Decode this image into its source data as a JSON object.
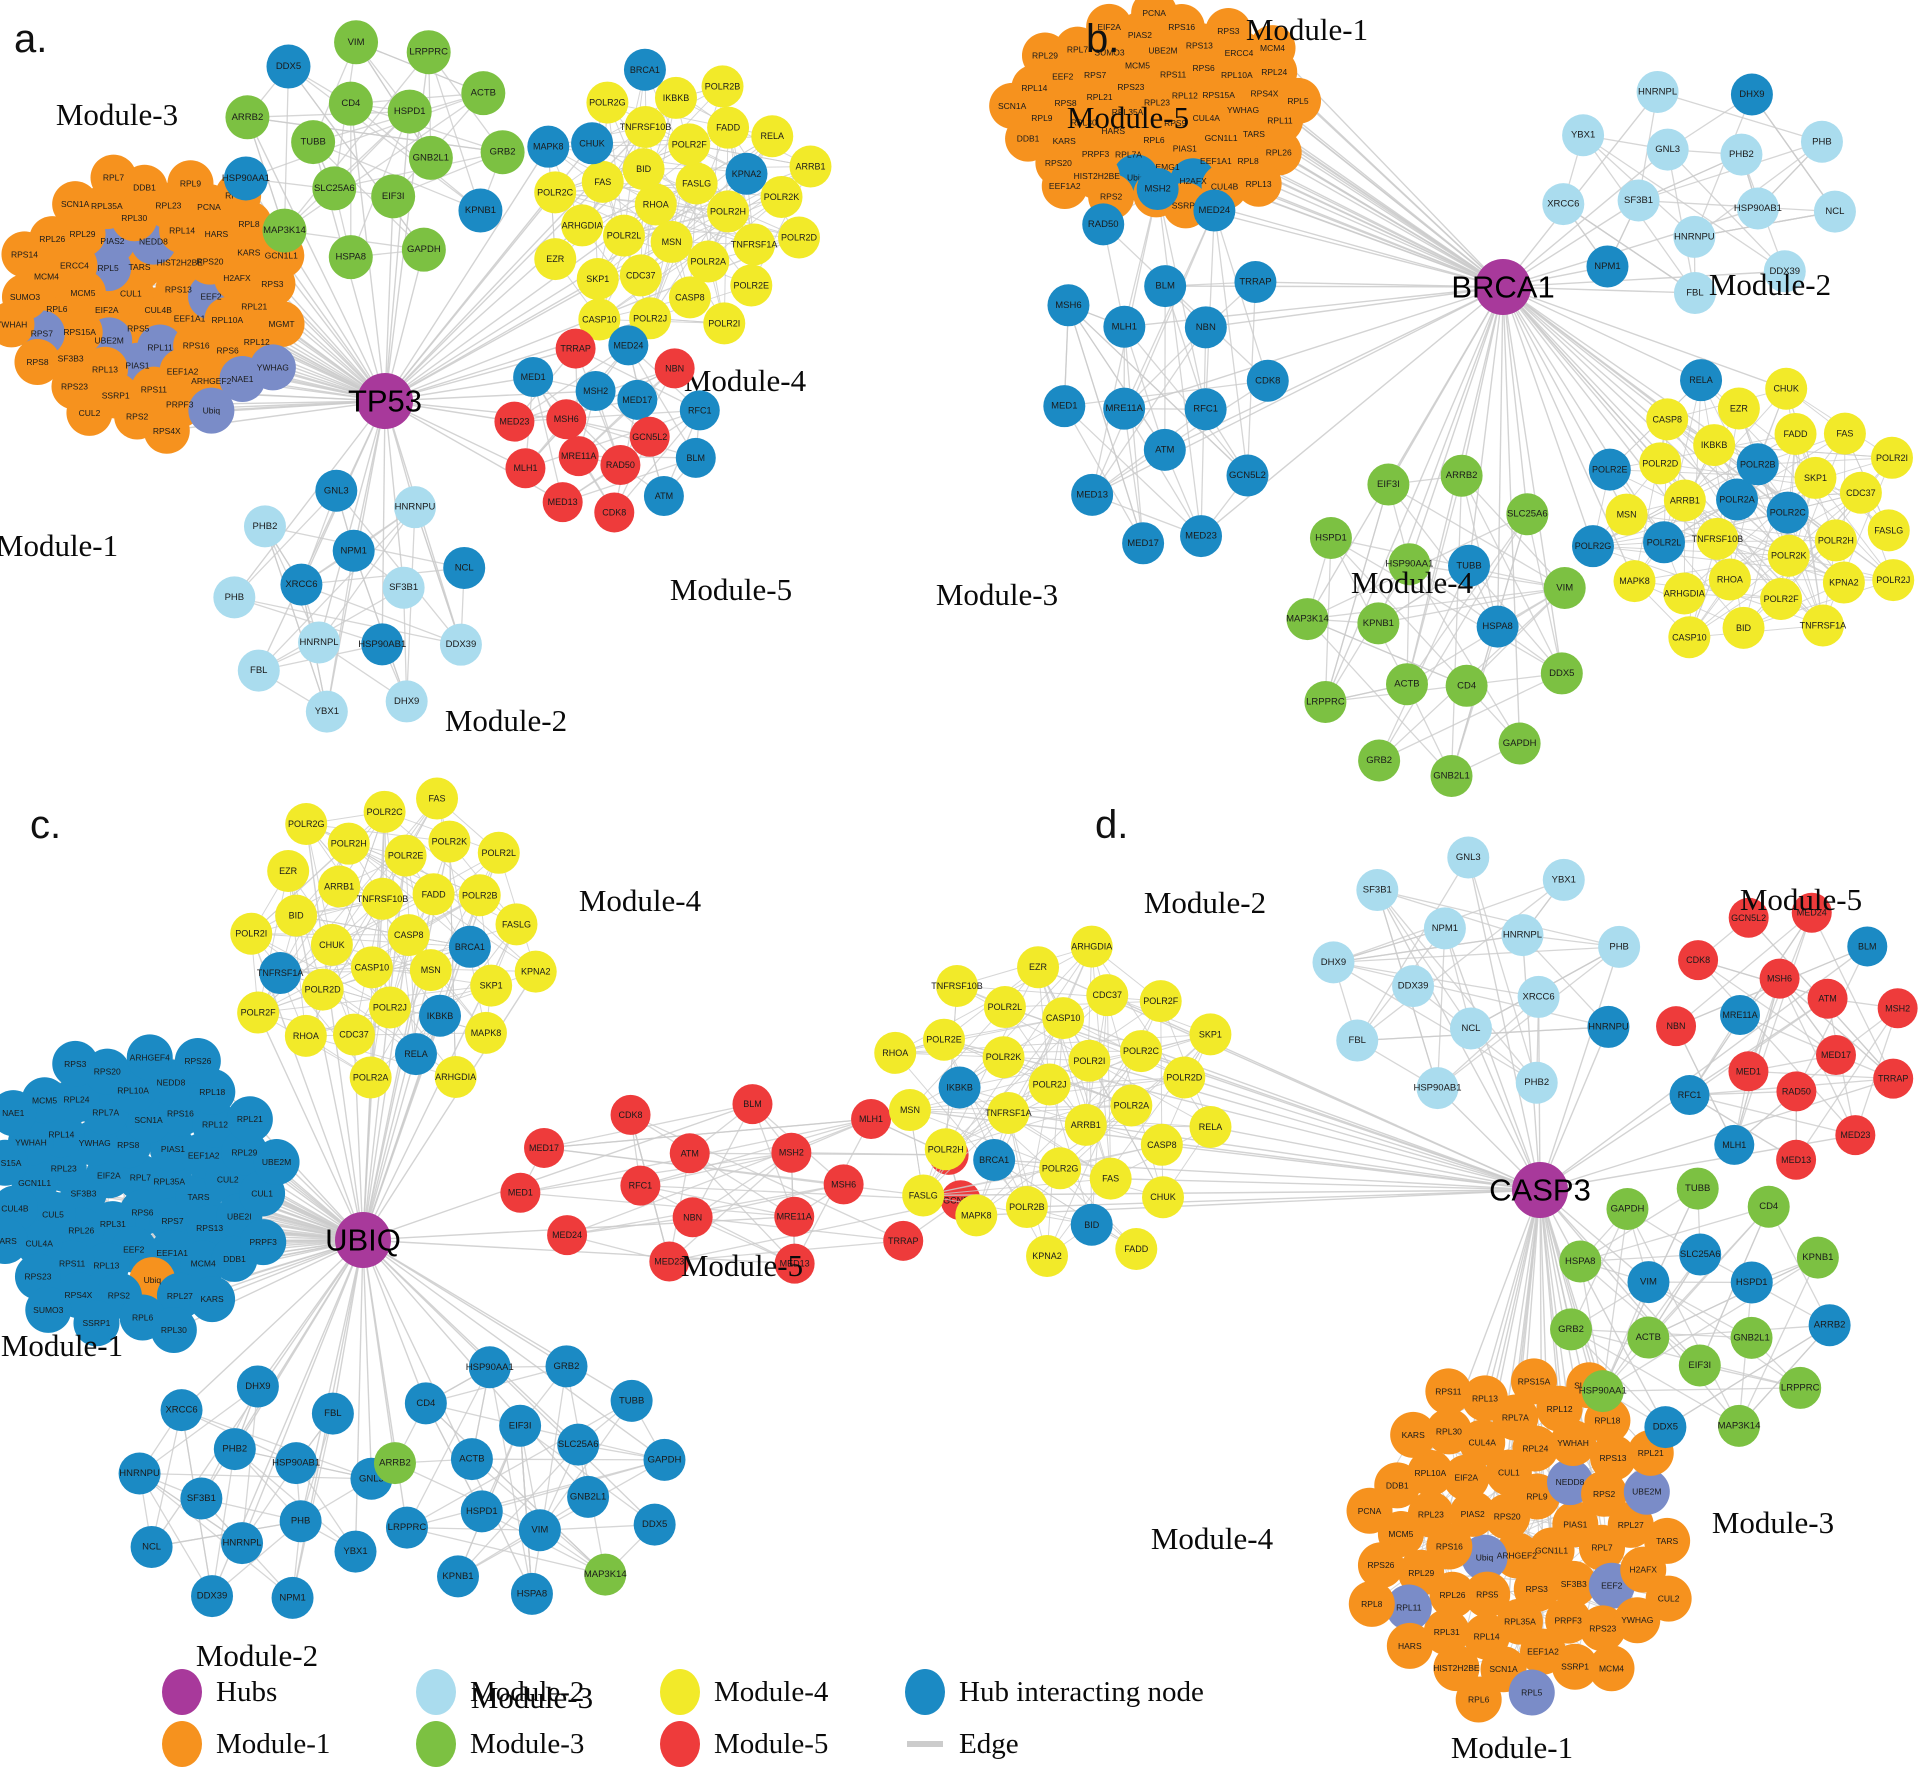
{
  "palette": {
    "hub": "#a8399b",
    "module1": "#f6921e",
    "module2": "#aadcee",
    "module3": "#7cc142",
    "module4": "#f2ea29",
    "module5": "#ee3b3b",
    "interacting": "#1b8ac4",
    "slate": "#7a8cc8",
    "edge": "#cccccc"
  },
  "legend": {
    "items": [
      {
        "label": "Hubs",
        "color": "hub",
        "shape": "dot"
      },
      {
        "label": "Module-1",
        "color": "module1",
        "shape": "dot"
      },
      {
        "label": "Module-2",
        "color": "module2",
        "shape": "dot"
      },
      {
        "label": "Module-3",
        "color": "module3",
        "shape": "dot"
      },
      {
        "label": "Module-4",
        "color": "module4",
        "shape": "dot"
      },
      {
        "label": "Module-5",
        "color": "module5",
        "shape": "dot"
      },
      {
        "label": "Hub interacting node",
        "color": "interacting",
        "shape": "dot"
      },
      {
        "label": "Edge",
        "color": "edge",
        "shape": "line"
      }
    ]
  },
  "panels": [
    {
      "letter": "a.",
      "hub": "TP53",
      "modules": [
        {
          "name": "Module-1",
          "color": "module1",
          "nodes": [
            "CUL4B",
            "CUL1",
            "RPS13",
            "RPS5",
            "TARS",
            "EEF1A1",
            "EIF2A",
            "HIST2H2BE",
            "RPL11|s",
            "RPL5|s",
            "EEF2|s",
            "UBE2M|s",
            "NEDD8|s",
            "RPS16",
            "MCM5",
            "RPS20",
            "PIAS1|s",
            "PIAS2|s",
            "RPL10A",
            "RPS15A",
            "RPL14",
            "EEF1A2",
            "ERCC4",
            "H2AFX",
            "RPL13",
            "RPL30",
            "RPS6",
            "RPL6",
            "HARS",
            "RPS11",
            "RPL29",
            "RPL21",
            "SF3B3",
            "RPL23",
            "ARHGEF2",
            "MCM4",
            "KARS",
            "SSRP1",
            "RPL35A",
            "RPL12",
            "RPS7|s",
            "PCNA",
            "PRPF3",
            "RPL26",
            "RPS3",
            "RPS23",
            "DDB1",
            "NAE1|s",
            "SUMO3",
            "RPL8",
            "RPS2",
            "SCN1A",
            "MGMT",
            "RPS8",
            "RPL9",
            "Ubiq|s",
            "RPS14",
            "GCN1L1",
            "CUL2",
            "RPL7",
            "YWHAG|s",
            "YWHAH",
            "RPL24",
            "RPS4X"
          ]
        },
        {
          "name": "Module-2",
          "color": "module2",
          "nodes": [
            "HNRNPL",
            "XRCC6|i",
            "NPM1|i",
            "SF3B1",
            "HSP90AB1|i",
            "PHB",
            "PHB2",
            "GNL3|i",
            "HNRNPU",
            "NCL|i",
            "DDX39",
            "DHX9",
            "YBX1",
            "FBL"
          ]
        },
        {
          "name": "Module-3",
          "color": "module3",
          "nodes": [
            "CD4",
            "HSPD1",
            "GNB2L1",
            "EIF3I",
            "SLC25A6",
            "TUBB",
            "DDX5|i",
            "VIM",
            "LRPPRC",
            "ACTB",
            "GRB2",
            "KPNB1|i",
            "GAPDH",
            "HSPA8",
            "MAP3K14",
            "HSP90AA1|i",
            "ARRB2"
          ]
        },
        {
          "name": "Module-4",
          "color": "module4",
          "nodes": [
            "RHOA",
            "FASLG",
            "MSN",
            "BID",
            "POLR2H",
            "POLR2L",
            "POLR2F",
            "POLR2A",
            "FAS",
            "KPNA2|i",
            "CDC37",
            "TNFRSF10B",
            "TNFRSF1A",
            "ARHGDIA",
            "FADD",
            "CASP8",
            "CHUK|i",
            "POLR2K",
            "SKP1",
            "IKBKB",
            "POLR2E",
            "POLR2C",
            "RELA",
            "POLR2J",
            "POLR2G",
            "POLR2D",
            "EZR",
            "POLR2B",
            "POLR2I",
            "MAPK8|i",
            "ARRB1",
            "CASP10",
            "BRCA1|i"
          ]
        },
        {
          "name": "Module-5",
          "color": "module5",
          "nodes": [
            "RAD50",
            "MRE11A",
            "MSH6",
            "MSH2|i",
            "MED17|i",
            "GCN5L2",
            "MED1|i",
            "TRRAP",
            "MED24|i",
            "NBN",
            "RFC1|i",
            "BLM|i",
            "ATM|i",
            "CDK8",
            "MED13",
            "MLH1",
            "MED23"
          ]
        }
      ]
    },
    {
      "letter": "b.",
      "hub": "BRCA1",
      "modules": [
        {
          "name": "Module-1",
          "color": "module1",
          "nodes": [
            "RPL23",
            "RPS9",
            "RPL35A",
            "RPL12",
            "RPL6",
            "RPS23",
            "CUL4A",
            "HARS",
            "RPS11",
            "PIAS1",
            "RPL21",
            "RPS15A",
            "RPL7A",
            "MCM5",
            "GCN1L1",
            "RPL30",
            "RPS6",
            "EMG1",
            "RPS7",
            "YWHAG",
            "PRPF3",
            "UBE2M",
            "EEF1A1",
            "RPS8",
            "RPL10A",
            "Ubiq|i",
            "SUMO3",
            "TARS",
            "KARS",
            "RPS13",
            "H2AFX|i",
            "EEF2",
            "RPS4X",
            "HIST2H2BE",
            "PIAS2",
            "RPL8",
            "RPL9",
            "ERCC4",
            "NAE1",
            "RPL7",
            "RPL11",
            "RPS20",
            "RPS16",
            "CUL4B",
            "RPL14",
            "RPL24",
            "RPS2",
            "EIF2A",
            "RPL26",
            "DDB1",
            "RPS3",
            "SSRP1",
            "RPL29",
            "RPL5",
            "EEF1A2",
            "PCNA",
            "RPL13",
            "SCN1A",
            "MCM4"
          ]
        },
        {
          "name": "Module-2",
          "color": "module2",
          "nodes": [
            "GNL3",
            "PHB2",
            "HSP90AB1",
            "HNRNPU",
            "SF3B1",
            "NPM1|i",
            "XRCC6",
            "YBX1",
            "HNRNPL",
            "DHX9|i",
            "PHB",
            "NCL",
            "DDX39",
            "FBL"
          ]
        },
        {
          "name": "Module-3",
          "color": "module3",
          "nodes": [
            "TUBB|i",
            "HSPA8|i",
            "CD4",
            "ACTB",
            "KPNB1",
            "HSP90AA1",
            "VIM",
            "DDX5",
            "GAPDH",
            "GNB2L1",
            "GRB2",
            "LRPPRC",
            "MAP3K14",
            "HSPD1",
            "EIF3I",
            "ARRB2",
            "SLC25A6"
          ]
        },
        {
          "name": "Module-4",
          "color": "module4",
          "nodes": [
            "POLR2A|i",
            "POLR2C|i",
            "TNFRSF10B",
            "POLR2B|i",
            "POLR2K",
            "ARRB1",
            "SKP1",
            "RHOA",
            "IKBKB",
            "POLR2H",
            "POLR2L|i",
            "FADD",
            "POLR2F",
            "POLR2D",
            "CDC37",
            "ARHGDIA",
            "EZR",
            "KPNA2",
            "MSN",
            "FAS",
            "BID",
            "CASP8",
            "FASLG",
            "MAPK8",
            "CHUK",
            "TNFRSF1A",
            "POLR2E|i",
            "POLR2I",
            "CASP10",
            "RELA|i",
            "POLR2J",
            "POLR2G|i"
          ]
        },
        {
          "name": "Module-5",
          "color": "module5",
          "nodes": [
            "RFC1|i",
            "ATM|i",
            "MRE11A|i",
            "MLH1|i",
            "BLM|i",
            "NBN|i",
            "MSH6|i",
            "RAD50|i",
            "MSH2|i",
            "MED24|i",
            "TRRAP|i",
            "CDK8|i",
            "GCN5L2|i",
            "MED23|i",
            "MED17|i",
            "MED13|i",
            "MED1|i"
          ]
        }
      ]
    },
    {
      "letter": "c.",
      "hub": "UBIQ",
      "modules": [
        {
          "name": "Module-1",
          "color": "interacting",
          "nodes": [
            "RPL7",
            "RPS6",
            "EIF2A",
            "RPL35A",
            "RPL31",
            "RPS8",
            "RPS7",
            "SF3B3",
            "PIAS1",
            "EEF2",
            "YWHAG",
            "TARS",
            "RPL26",
            "SCN1A",
            "EEF1A1",
            "RPL23",
            "EEF1A2",
            "RPL13",
            "RPL7A",
            "RPS13",
            "CUL5",
            "RPS16",
            "Ubiq|o",
            "RPL14",
            "CUL2",
            "RPS11",
            "RPL10A",
            "MCM4",
            "GCN1L1",
            "RPL12",
            "RPS2",
            "RPL24",
            "UBE2I",
            "CUL4A",
            "NEDD8",
            "RPL27",
            "YWHAH",
            "RPL29",
            "RPS4X",
            "RPS20",
            "DDB1",
            "CUL4B",
            "RPL18",
            "RPL6",
            "MCM5",
            "CUL1",
            "RPS23",
            "ARHGEF4",
            "KARS",
            "RPS15A",
            "RPL21",
            "SSRP1",
            "RPS3",
            "PRPF3",
            "HARS",
            "RPS26",
            "RPL30",
            "NAE1",
            "UBE2M",
            "SUMO3"
          ]
        },
        {
          "name": "Module-2",
          "color": "interacting",
          "nodes": [
            "PHB2",
            "HSP90AB1",
            "PHB",
            "HNRNPL",
            "SF3B1",
            "NCL",
            "HNRNPU",
            "XRCC6",
            "DHX9",
            "FBL",
            "GNL3",
            "YBX1",
            "NPM1",
            "DDX39"
          ]
        },
        {
          "name": "Module-3",
          "color": "interacting",
          "nodes": [
            "GNB2L1",
            "VIM",
            "HSPD1",
            "ACTB",
            "EIF3I",
            "SLC25A6",
            "KPNB1",
            "LRPPRC",
            "ARRB2|g",
            "CD4",
            "HSP90AA1",
            "GRB2",
            "TUBB",
            "GAPDH",
            "DDX5",
            "MAP3K14|g",
            "HSPA8"
          ]
        },
        {
          "name": "Module-4",
          "color": "module4",
          "nodes": [
            "CASP8",
            "CASP10",
            "TNFRSF10B",
            "MSN",
            "CHUK",
            "FADD",
            "POLR2J",
            "ARRB1",
            "BRCA1|i",
            "POLR2D",
            "POLR2E",
            "IKBKB|i",
            "BID",
            "POLR2B",
            "CDC37",
            "POLR2H",
            "SKP1",
            "TNFRSF1A|i",
            "POLR2K",
            "RELA|i",
            "EZR",
            "FASLG",
            "RHOA",
            "POLR2C",
            "MAPK8",
            "POLR2I",
            "POLR2L",
            "POLR2A",
            "POLR2G",
            "KPNA2",
            "POLR2F",
            "FAS",
            "ARHGDIA"
          ]
        },
        {
          "name": "Module-5",
          "color": "module5",
          "nodes": [
            "MSH6",
            "MRE11A",
            "NBN",
            "RFC1",
            "ATM",
            "MSH2",
            "BLM",
            "MLH1",
            "RAD50",
            "GCN5L2",
            "TRRAP",
            "MED13",
            "MED23",
            "MED24",
            "MED1",
            "MED17",
            "CDK8"
          ]
        }
      ]
    },
    {
      "letter": "d.",
      "hub": "CASP3",
      "modules": [
        {
          "name": "Module-1",
          "color": "module1",
          "nodes": [
            "ARHGEF2",
            "RPS20",
            "GCN1L1",
            "Ubiq|s",
            "RPL9",
            "RPS3",
            "PIAS2",
            "PIAS1",
            "RPS5",
            "CUL1",
            "SF3B3",
            "RPS16",
            "NEDD8|s",
            "RPL35A",
            "EIF2A",
            "RPL7",
            "RPL26",
            "RPL24",
            "PRPF3",
            "RPL23",
            "RPS2",
            "RPL14",
            "CUL4A",
            "EEF2|s",
            "RPL29",
            "YWHAH",
            "EEF1A2",
            "RPL10A",
            "RPL27",
            "RPL31",
            "RPL7A",
            "RPS23",
            "MCM5",
            "RPS13",
            "SCN1A",
            "RPL30",
            "H2AFX",
            "RPL11|s",
            "RPL12",
            "SSRP1",
            "DDB1",
            "UBE2M|s",
            "HIST2H2BE",
            "RPL13",
            "YWHAG",
            "RPS26",
            "RPL18",
            "RPL5|s",
            "KARS",
            "TARS",
            "HARS",
            "RPS15A",
            "MCM4",
            "PCNA",
            "RPL21",
            "RPL6",
            "RPS11",
            "CUL2",
            "RPL8",
            "SUMO3"
          ]
        },
        {
          "name": "Module-2",
          "color": "module2",
          "nodes": [
            "NCL",
            "DDX39",
            "NPM1",
            "HNRNPL",
            "XRCC6",
            "PHB2",
            "HSP90AB1",
            "FBL",
            "DHX9",
            "SF3B1",
            "GNL3",
            "YBX1",
            "PHB",
            "HNRNPU|i"
          ]
        },
        {
          "name": "Module-3",
          "color": "module3",
          "nodes": [
            "VIM|i",
            "SLC25A6|i",
            "HSPD1|i",
            "GNB2L1",
            "EIF3I",
            "ACTB",
            "CD4",
            "KPNB1",
            "ARRB2|i",
            "LRPPRC",
            "MAP3K14",
            "DDX5|i",
            "HSP90AA1",
            "GRB2",
            "HSPA8",
            "GAPDH",
            "TUBB"
          ]
        },
        {
          "name": "Module-4",
          "color": "module4",
          "nodes": [
            "POLR2J",
            "ARRB1",
            "TNFRSF1A",
            "POLR2I",
            "POLR2G",
            "POLR2K",
            "POLR2A",
            "BRCA1|i",
            "CASP10",
            "FAS",
            "IKBKB|i",
            "POLR2C",
            "POLR2B",
            "POLR2L",
            "CASP8",
            "POLR2H",
            "CDC37",
            "BID|i",
            "POLR2E",
            "POLR2D",
            "MAPK8",
            "EZR",
            "CHUK",
            "MSN",
            "POLR2F",
            "KPNA2",
            "TNFRSF10B",
            "RELA",
            "FASLG",
            "ARHGDIA",
            "FADD",
            "RHOA",
            "SKP1"
          ]
        },
        {
          "name": "Module-5",
          "color": "module5",
          "nodes": [
            "ATM",
            "MED17",
            "RAD50",
            "MED1",
            "MRE11A|i",
            "MSH6",
            "MED13",
            "MLH1|i",
            "RFC1|i",
            "NBN",
            "CDK8",
            "GCN5L2",
            "MED24",
            "BLM|i",
            "MSH2",
            "TRRAP",
            "MED23"
          ]
        }
      ]
    }
  ]
}
